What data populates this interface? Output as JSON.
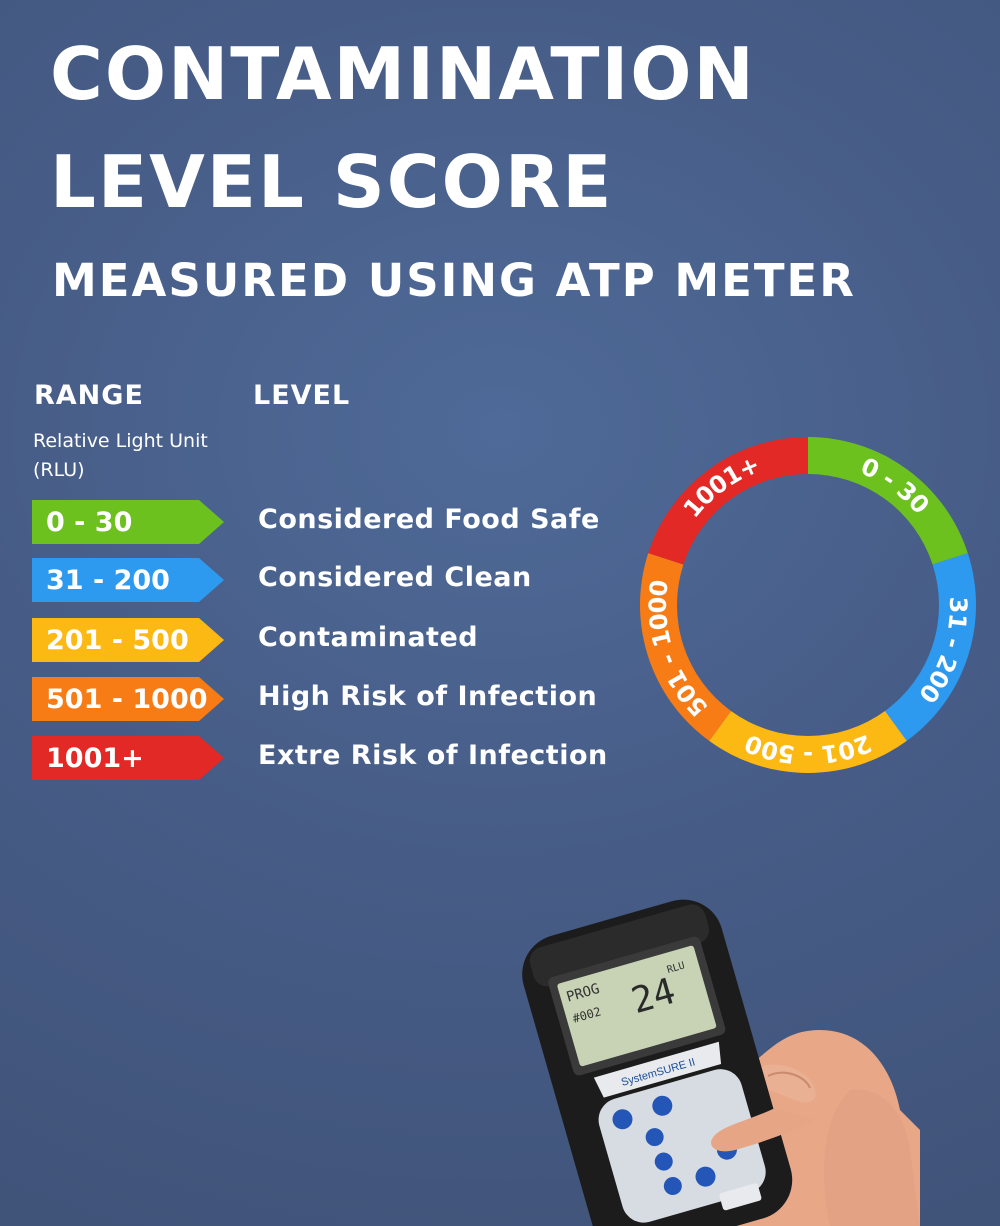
{
  "header": {
    "title_line1": "CONTAMINATION",
    "title_line2": "LEVEL SCORE",
    "subtitle": "MEASURED USING ATP METER"
  },
  "table": {
    "range_header": "RANGE",
    "level_header": "LEVEL",
    "unit_label": "Relative Light Unit (RLU)",
    "rows": [
      {
        "range": "0 - 30",
        "level": "Considered Food Safe",
        "color": "#6cc11f"
      },
      {
        "range": "31 - 200",
        "level": "Considered Clean",
        "color": "#2d9af0"
      },
      {
        "range": "201 - 500",
        "level": "Contaminated",
        "color": "#fdb913"
      },
      {
        "range": "501 - 1000",
        "level": "High Risk of Infection",
        "color": "#f77c15"
      },
      {
        "range": "1001+",
        "level": "Extre Risk of Infection",
        "color": "#e22925"
      }
    ]
  },
  "ring": {
    "segments": [
      {
        "label": "0 - 30",
        "color": "#6cc11f"
      },
      {
        "label": "31 - 200",
        "color": "#2d9af0"
      },
      {
        "label": "201 - 500",
        "color": "#fdb913"
      },
      {
        "label": "501 - 1000",
        "color": "#f77c15"
      },
      {
        "label": "1001+",
        "color": "#e22925"
      }
    ]
  },
  "device": {
    "screen_top_left": "PROG",
    "screen_code": "#002",
    "screen_reading": "24",
    "screen_unit": "RLU",
    "brand": "SystemSURE II",
    "icon_names": [
      "power-icon",
      "star-icon",
      "up-arrow-icon",
      "ok-icon",
      "down-arrow-icon",
      "p-icon",
      "info-icon"
    ]
  }
}
